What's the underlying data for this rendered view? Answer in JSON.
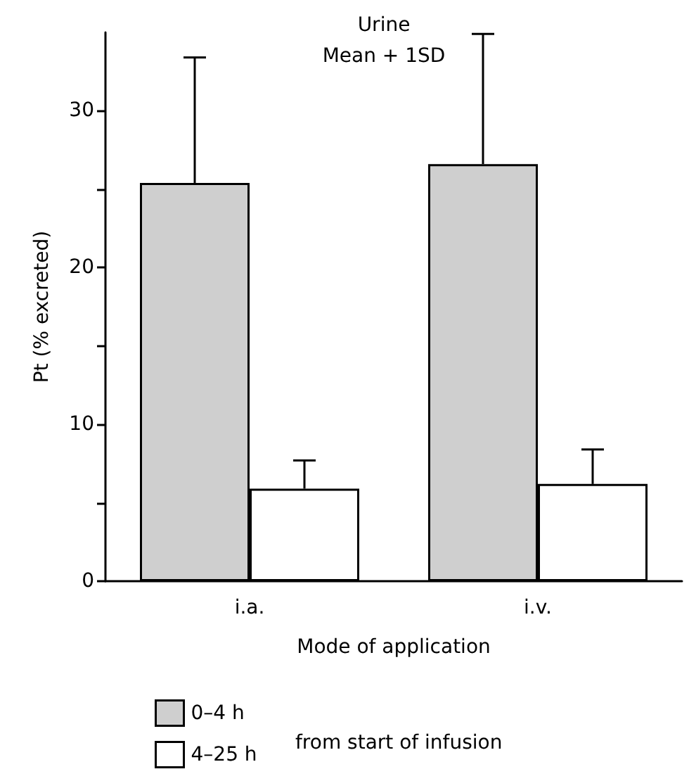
{
  "chart_data": {
    "type": "bar",
    "title": "Urine",
    "subtitle": "Mean + 1SD",
    "xlabel": "Mode of application",
    "ylabel": "Pt (% excreted)",
    "legend_title": "from start of infusion",
    "categories": [
      "i.a.",
      "i.v."
    ],
    "series": [
      {
        "name": "0–4 h",
        "color": "#cfcfcf",
        "values": [
          25.4,
          26.6
        ],
        "errors": [
          8.0,
          8.3
        ]
      },
      {
        "name": "4–25 h",
        "color": "#ffffff",
        "values": [
          5.9,
          6.2
        ],
        "errors": [
          1.8,
          2.2
        ]
      }
    ],
    "ylim": [
      0,
      35
    ],
    "yticks": [
      0,
      {
        "value": 5,
        "label": null
      },
      10,
      {
        "value": 15,
        "label": null
      },
      20,
      {
        "value": 25,
        "label": null
      },
      30
    ],
    "grid": false,
    "legend": "bottom left"
  }
}
